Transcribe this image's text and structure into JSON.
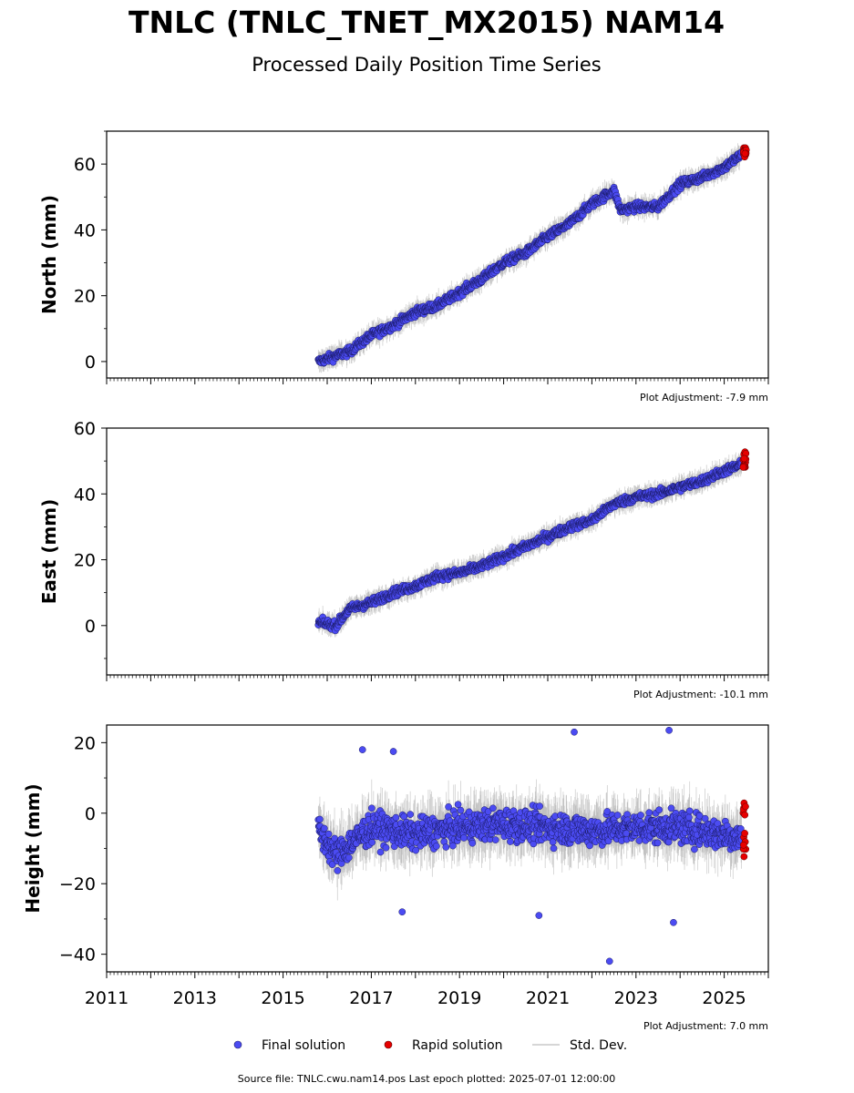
{
  "figure": {
    "title": "TNLC (TNLC_TNET_MX2015) NAM14",
    "subtitle": "Processed Daily Position Time Series",
    "source_note": "Source file: TNLC.cwu.nam14.pos  Last epoch plotted: 2025-07-01 12:00:00"
  },
  "legend": {
    "final_label": "Final solution",
    "rapid_label": "Rapid solution",
    "std_label": "Std. Dev."
  },
  "colors": {
    "final": "#4b4bf2",
    "final_edge": "#1a1a66",
    "rapid": "#e60000",
    "rapid_edge": "#550000",
    "std": "#b0b0b0"
  },
  "chart_data": [
    {
      "type": "scatter",
      "ylabel": "North (mm)",
      "adjustment": "Plot Adjustment: -7.9 mm",
      "xlim": [
        2011,
        2026
      ],
      "ylim": [
        -5,
        70
      ],
      "yticks": [
        0,
        20,
        40,
        60
      ],
      "ytick_labels": [
        "0",
        "20",
        "40",
        "60"
      ],
      "x_ticklabels_visible": false,
      "final_track": {
        "x": [
          2015.8,
          2016.5,
          2017.0,
          2017.5,
          2018.0,
          2018.5,
          2019.0,
          2019.5,
          2020.0,
          2020.5,
          2021.0,
          2021.5,
          2022.0,
          2022.5,
          2022.65,
          2023.0,
          2023.5,
          2024.0,
          2024.5,
          2025.0,
          2025.4
        ],
        "y": [
          0,
          3,
          8,
          11,
          15,
          17,
          21,
          25,
          30,
          33,
          38,
          42,
          48,
          52,
          46,
          47,
          47,
          54,
          56,
          59,
          63
        ]
      },
      "final_scatter": 2.0,
      "final_std": 2.5,
      "rapid": {
        "x_start": 2025.42,
        "x_end": 2025.5,
        "y_min": 62,
        "y_max": 65
      }
    },
    {
      "type": "scatter",
      "ylabel": "East (mm)",
      "adjustment": "Plot Adjustment: -10.1 mm",
      "xlim": [
        2011,
        2026
      ],
      "ylim": [
        -15,
        60
      ],
      "yticks": [
        0,
        20,
        40,
        60
      ],
      "ytick_labels": [
        "0",
        "20",
        "40",
        "60"
      ],
      "x_ticklabels_visible": false,
      "final_track": {
        "x": [
          2015.8,
          2016.2,
          2016.5,
          2017.0,
          2017.5,
          2018.0,
          2018.5,
          2019.0,
          2019.5,
          2020.0,
          2020.5,
          2021.0,
          2021.5,
          2022.0,
          2022.5,
          2023.0,
          2023.5,
          2024.0,
          2024.5,
          2025.0,
          2025.4
        ],
        "y": [
          1,
          0,
          5,
          7,
          10,
          12,
          15,
          16,
          18,
          21,
          24,
          27,
          30,
          32,
          37,
          39,
          40,
          42,
          44,
          47,
          49
        ]
      },
      "final_scatter": 2.0,
      "final_std": 2.5,
      "rapid": {
        "x_start": 2025.42,
        "x_end": 2025.5,
        "y_min": 48,
        "y_max": 53
      }
    },
    {
      "type": "scatter",
      "ylabel": "Height (mm)",
      "adjustment": "Plot Adjustment: 7.0 mm",
      "xlim": [
        2011,
        2026
      ],
      "ylim": [
        -45,
        25
      ],
      "yticks": [
        -40,
        -20,
        0,
        20
      ],
      "ytick_labels": [
        "−40",
        "−20",
        "0",
        "20"
      ],
      "x_ticklabels_visible": true,
      "xticks": [
        2011,
        2013,
        2015,
        2017,
        2019,
        2021,
        2023,
        2025
      ],
      "xtick_labels": [
        "2011",
        "2013",
        "2015",
        "2017",
        "2019",
        "2021",
        "2023",
        "2025"
      ],
      "final_track": {
        "x": [
          2015.8,
          2016.2,
          2017.0,
          2018.0,
          2019.0,
          2020.0,
          2021.0,
          2022.0,
          2023.0,
          2024.0,
          2025.0,
          2025.4
        ],
        "y": [
          -5,
          -12,
          -4,
          -6,
          -4,
          -3,
          -4,
          -5,
          -4,
          -4,
          -6,
          -7
        ]
      },
      "final_scatter": 7.0,
      "final_std": 6.0,
      "outliers": [
        {
          "x": 2021.6,
          "y": 23
        },
        {
          "x": 2023.75,
          "y": 23.5
        },
        {
          "x": 2022.4,
          "y": -42
        },
        {
          "x": 2023.85,
          "y": -31
        },
        {
          "x": 2017.7,
          "y": -28
        },
        {
          "x": 2020.8,
          "y": -29
        },
        {
          "x": 2016.8,
          "y": 18
        },
        {
          "x": 2017.5,
          "y": 17.5
        }
      ],
      "rapid": {
        "x_start": 2025.42,
        "x_end": 2025.5,
        "y_min": -13,
        "y_max": 6
      }
    }
  ]
}
